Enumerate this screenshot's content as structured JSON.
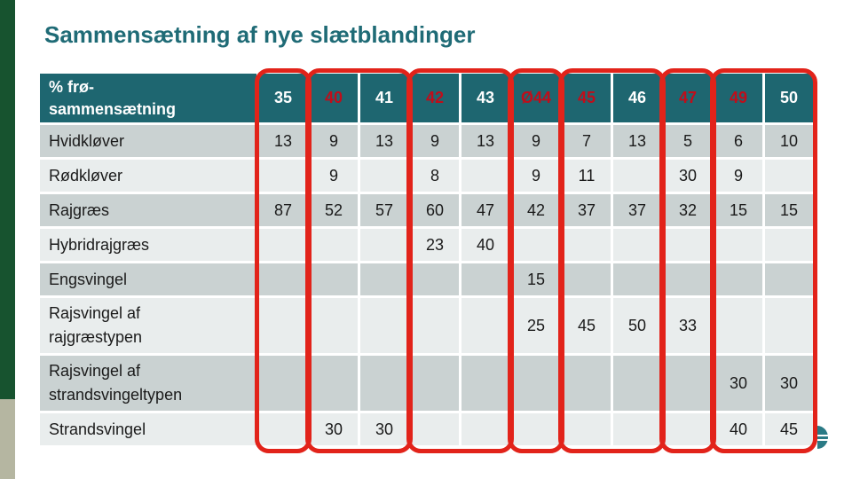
{
  "slide": {
    "title": "Sammensætning af nye slætblandinger"
  },
  "table": {
    "header": {
      "line1": "% frø-",
      "line2": "sammensætning"
    },
    "columns": [
      {
        "label": "35",
        "highlight": false
      },
      {
        "label": "40",
        "highlight": true
      },
      {
        "label": "41",
        "highlight": false
      },
      {
        "label": "42",
        "highlight": true
      },
      {
        "label": "43",
        "highlight": false
      },
      {
        "label": "Ø44",
        "highlight": true
      },
      {
        "label": "45",
        "highlight": true
      },
      {
        "label": "46",
        "highlight": false
      },
      {
        "label": "47",
        "highlight": true
      },
      {
        "label": "49",
        "highlight": true
      },
      {
        "label": "50",
        "highlight": false
      }
    ],
    "rows": [
      {
        "label": "Hvidkløver",
        "values": [
          "13",
          "9",
          "13",
          "9",
          "13",
          "9",
          "7",
          "13",
          "5",
          "6",
          "10"
        ]
      },
      {
        "label": "Rødkløver",
        "values": [
          "",
          "9",
          "",
          "8",
          "",
          "9",
          "11",
          "",
          "30",
          "9",
          ""
        ]
      },
      {
        "label": "Rajgræs",
        "values": [
          "87",
          "52",
          "57",
          "60",
          "47",
          "42",
          "37",
          "37",
          "32",
          "15",
          "15"
        ]
      },
      {
        "label": "Hybridrajgræs",
        "values": [
          "",
          "",
          "",
          "23",
          "40",
          "",
          "",
          "",
          "",
          "",
          ""
        ]
      },
      {
        "label": "Engsvingel",
        "values": [
          "",
          "",
          "",
          "",
          "",
          "15",
          "",
          "",
          "",
          "",
          ""
        ]
      },
      {
        "label": "Rajsvingel af rajgræstypen",
        "values": [
          "",
          "",
          "",
          "",
          "",
          "25",
          "45",
          "50",
          "33",
          "",
          ""
        ]
      },
      {
        "label": "Rajsvingel af strandsvingeltypen",
        "values": [
          "",
          "",
          "",
          "",
          "",
          "",
          "",
          "",
          "",
          "30",
          "30"
        ]
      },
      {
        "label": "Strandsvingel",
        "values": [
          "",
          "30",
          "30",
          "",
          "",
          "",
          "",
          "",
          "",
          "40",
          "45"
        ]
      }
    ],
    "highlight_groups": [
      {
        "start": 0,
        "span": 1
      },
      {
        "start": 1,
        "span": 2
      },
      {
        "start": 3,
        "span": 2
      },
      {
        "start": 5,
        "span": 1
      },
      {
        "start": 6,
        "span": 2
      },
      {
        "start": 8,
        "span": 1
      },
      {
        "start": 9,
        "span": 2
      }
    ]
  },
  "colors": {
    "header_bg": "#1E6670",
    "row_dark": "#CAD2D2",
    "row_light": "#E9EDED",
    "accent_red": "#E2231A",
    "red_text": "#C00D1A",
    "title": "#1F6B76",
    "text": "#1A1A1A",
    "bar_green": "#17532F",
    "bar_tan": "#B5B6A1",
    "logo": "#2A7A85"
  }
}
